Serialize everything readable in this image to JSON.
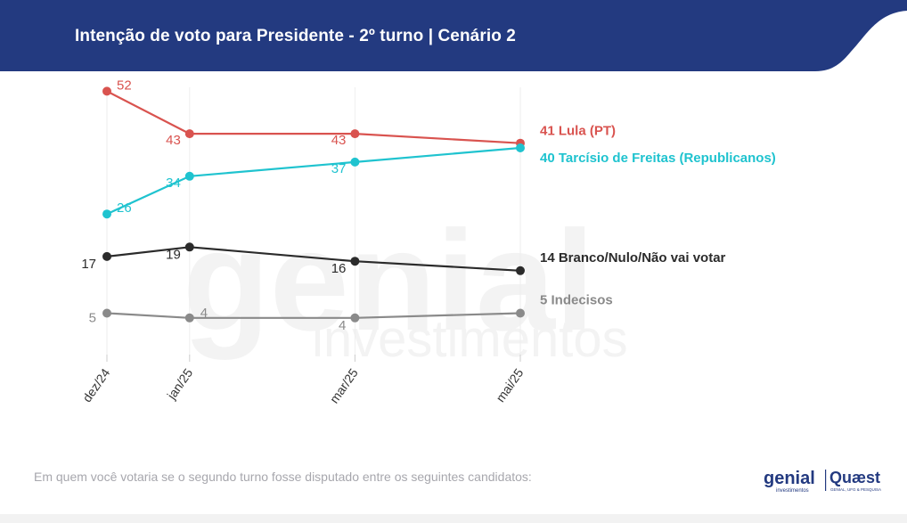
{
  "header": {
    "title": "Intenção de voto para Presidente - 2º turno | Cenário 2",
    "bg_color": "#233a80"
  },
  "watermark": {
    "line1": "genial",
    "line2": "investimentos"
  },
  "footnote": "Em quem você votaria se o segundo turno fosse disputado entre os seguintes candidatos:",
  "logos": {
    "genial": "genial",
    "genial_sub": "investimentos",
    "quaest": "Quæst",
    "quaest_sub": "GENIAL, UFG & PESQUISA"
  },
  "chart_data": {
    "type": "line",
    "title": "Intenção de voto para Presidente - 2º turno | Cenário 2",
    "x": [
      "dez/24",
      "jan/25",
      "mar/25",
      "mai/25"
    ],
    "x_time": [
      0,
      1,
      3,
      5
    ],
    "ylim": [
      0,
      60
    ],
    "grid": "vertical",
    "series": [
      {
        "name": "Lula (PT)",
        "label": "41 Lula (PT)",
        "color": "#d9534f",
        "values": [
          52,
          43,
          43,
          41
        ],
        "label_pos": [
          "right",
          "left",
          "left",
          "none"
        ]
      },
      {
        "name": "Tarcísio de Freitas (Republicanos)",
        "label": "40 Tarcísio de Freitas (Republicanos)",
        "color": "#1fc3cf",
        "values": [
          26,
          34,
          37,
          40
        ],
        "label_pos": [
          "right",
          "left",
          "left",
          "none"
        ]
      },
      {
        "name": "Branco/Nulo/Não vai votar",
        "label": "14 Branco/Nulo/Não vai votar",
        "color": "#2b2b2b",
        "values": [
          17,
          19,
          16,
          14
        ],
        "label_pos": [
          "left",
          "left",
          "below",
          "none"
        ]
      },
      {
        "name": "Indecisos",
        "label": "5 Indecisos",
        "color": "#8a8a8a",
        "values": [
          5,
          4,
          4,
          5
        ],
        "label_pos": [
          "left",
          "right",
          "below",
          "none"
        ]
      }
    ]
  }
}
